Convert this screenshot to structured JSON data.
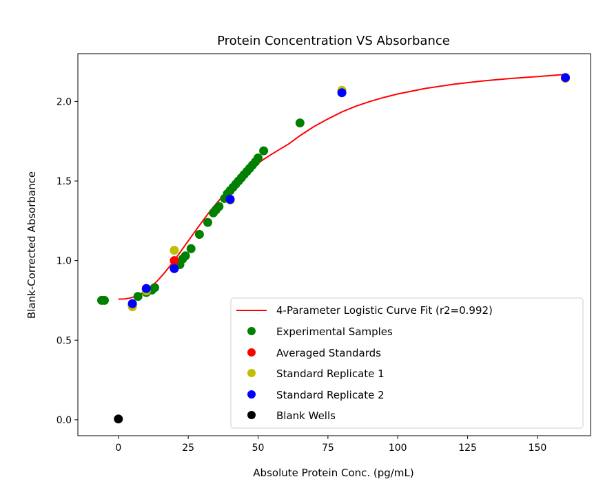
{
  "chart_data": {
    "type": "scatter",
    "title": "Protein Concentration VS Absorbance",
    "xlabel": "Absolute Protein Conc. (pg/mL)",
    "ylabel": "Blank-Corrected Absorbance",
    "xlim": [
      -14.5,
      169
    ],
    "ylim": [
      -0.1,
      2.3
    ],
    "xticks": [
      0,
      25,
      50,
      75,
      100,
      125,
      150
    ],
    "yticks": [
      0.0,
      0.5,
      1.0,
      1.5,
      2.0
    ],
    "xtick_labels": [
      "0",
      "25",
      "50",
      "75",
      "100",
      "125",
      "150"
    ],
    "ytick_labels": [
      "0.0",
      "0.5",
      "1.0",
      "1.5",
      "2.0"
    ],
    "grid": false,
    "legend_position": "lower-right",
    "fit": {
      "name": "4-Parameter Logistic Curve Fit (r2=0.992)",
      "color": "#ff0000",
      "x": [
        0,
        2,
        4,
        6,
        8,
        10,
        12,
        14,
        16,
        18,
        20,
        22,
        24,
        26,
        28,
        30,
        32,
        34,
        36,
        38,
        40,
        42,
        44,
        46,
        48,
        50,
        52,
        55,
        58,
        61,
        65,
        70,
        75,
        80,
        85,
        90,
        95,
        100,
        110,
        120,
        130,
        140,
        150,
        160
      ],
      "y": [
        0.758,
        0.759,
        0.764,
        0.774,
        0.79,
        0.812,
        0.84,
        0.874,
        0.913,
        0.956,
        1.002,
        1.05,
        1.099,
        1.148,
        1.197,
        1.245,
        1.292,
        1.336,
        1.378,
        1.418,
        1.456,
        1.491,
        1.524,
        1.555,
        1.584,
        1.611,
        1.636,
        1.67,
        1.702,
        1.733,
        1.785,
        1.842,
        1.89,
        1.934,
        1.97,
        2.0,
        2.025,
        2.047,
        2.082,
        2.108,
        2.128,
        2.144,
        2.156,
        2.17
      ]
    },
    "series": [
      {
        "name": "Experimental Samples",
        "color": "#008000",
        "x": [
          -6,
          -5,
          7,
          10,
          12,
          13,
          20,
          22,
          23,
          24,
          26,
          29,
          32,
          34,
          35,
          36,
          38,
          39,
          40,
          41,
          42,
          43,
          44,
          45,
          46,
          47,
          48,
          49,
          50,
          52,
          65
        ],
        "y": [
          0.75,
          0.75,
          0.775,
          0.8,
          0.815,
          0.83,
          0.95,
          0.975,
          1.01,
          1.03,
          1.075,
          1.165,
          1.24,
          1.3,
          1.32,
          1.34,
          1.39,
          1.42,
          1.44,
          1.46,
          1.48,
          1.5,
          1.52,
          1.54,
          1.56,
          1.58,
          1.6,
          1.62,
          1.645,
          1.69,
          1.865
        ]
      },
      {
        "name": "Averaged Standards",
        "color": "#ff0000",
        "x": [
          5,
          10,
          20,
          40,
          80,
          160
        ],
        "y": [
          0.72,
          0.82,
          1.0,
          1.385,
          2.06,
          2.145
        ]
      },
      {
        "name": "Standard Replicate 1",
        "color": "#bfbf00",
        "x": [
          5,
          10,
          20,
          40,
          80,
          160
        ],
        "y": [
          0.71,
          0.81,
          1.065,
          1.38,
          2.07,
          2.145
        ]
      },
      {
        "name": "Standard Replicate 2",
        "color": "#0000ff",
        "x": [
          5,
          10,
          20,
          40,
          80,
          160
        ],
        "y": [
          0.73,
          0.825,
          0.95,
          1.385,
          2.055,
          2.15
        ]
      },
      {
        "name": "Blank Wells",
        "color": "#000000",
        "x": [
          0
        ],
        "y": [
          0.005
        ]
      }
    ]
  }
}
